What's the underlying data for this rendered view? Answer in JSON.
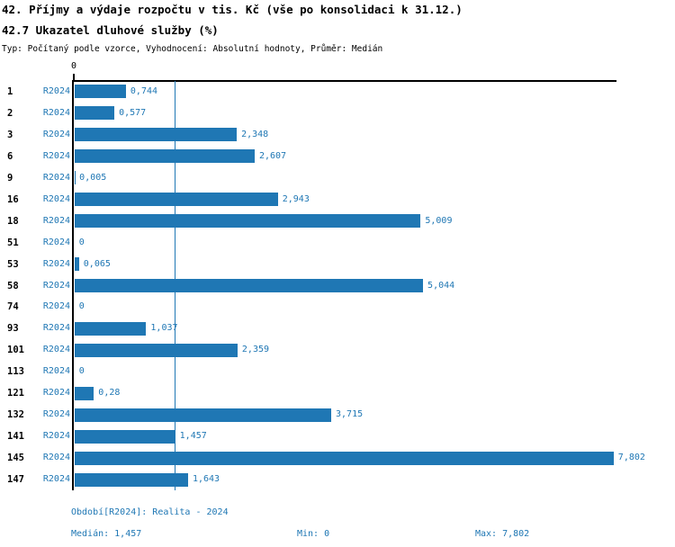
{
  "title_line1": "42. Příjmy a výdaje rozpočtu v tis. Kč (vše po konsolidaci k 31.12.)",
  "title_line2": "42.7 Ukazatel dluhové služby (%)",
  "subtitle": "Typ: Počítaný podle vzorce, Vyhodnocení: Absolutní hodnoty, Průměr: Medián",
  "colors": {
    "accent": "#1f77b4",
    "axis": "#000000",
    "background": "#ffffff"
  },
  "chart_data": {
    "type": "bar",
    "orientation": "horizontal",
    "title": "42.7 Ukazatel dluhové služby (%)",
    "grid": false,
    "legend_position": "none",
    "categories": [
      "1",
      "2",
      "3",
      "6",
      "9",
      "16",
      "18",
      "51",
      "53",
      "58",
      "74",
      "93",
      "101",
      "113",
      "121",
      "132",
      "141",
      "145",
      "147"
    ],
    "series": [
      {
        "name": "R2024",
        "values": [
          0.744,
          0.577,
          2.348,
          2.607,
          0.005,
          2.943,
          5.009,
          0,
          0.065,
          5.044,
          0,
          1.037,
          2.359,
          0,
          0.28,
          3.715,
          1.457,
          7.802,
          1.643
        ],
        "labels": [
          "0,744",
          "0,577",
          "2,348",
          "2,607",
          "0,005",
          "2,943",
          "5,009",
          "0",
          "0,065",
          "5,044",
          "0",
          "1,037",
          "2,359",
          "0",
          "0,28",
          "3,715",
          "1,457",
          "7,802",
          "1,643"
        ]
      }
    ],
    "x_axis": {
      "zero_label": "0",
      "xlim": [
        0,
        7.85
      ]
    },
    "median_value": 1.457,
    "min_value": 0,
    "max_value": 7.802
  },
  "footer": {
    "period": "Období[R2024]: Realita - 2024",
    "median": "Medián: 1,457",
    "min": "Min: 0",
    "max": "Max: 7,802"
  }
}
